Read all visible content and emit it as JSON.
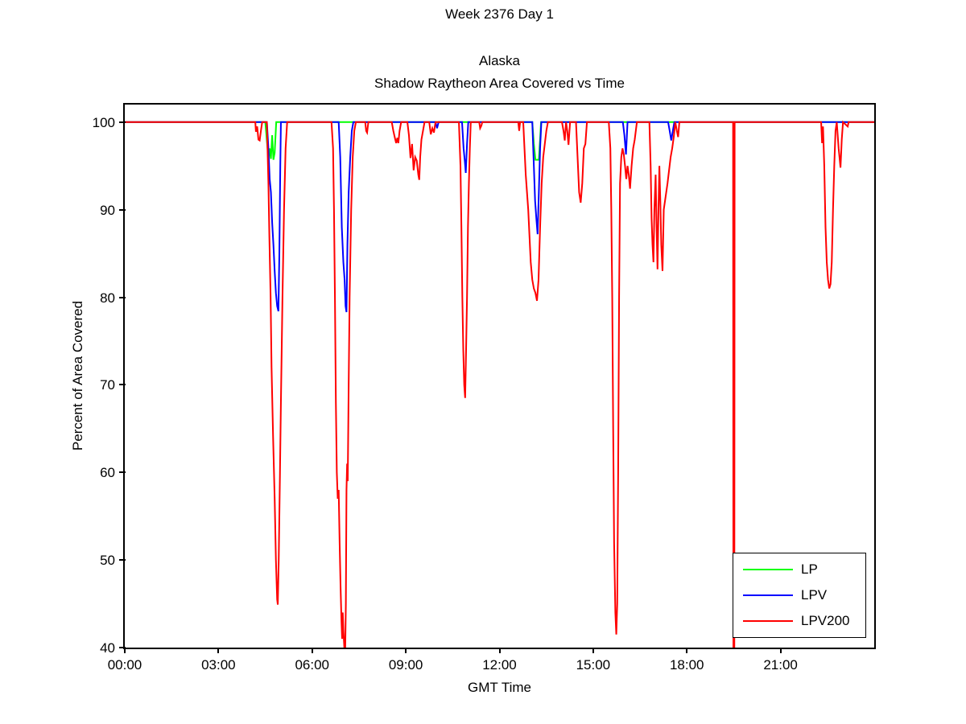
{
  "figure": {
    "suptitle": "Week 2376 Day 1",
    "title_line1": "Alaska",
    "title_line2": "Shadow Raytheon Area Covered vs Time",
    "xlabel": "GMT Time",
    "ylabel": "Percent of Area Covered"
  },
  "chart_data": {
    "type": "line",
    "title": "Alaska - Shadow Raytheon Area Covered vs Time",
    "suptitle": "Week 2376 Day 1",
    "xlabel": "GMT Time",
    "ylabel": "Percent of Area Covered",
    "xlim": [
      0,
      24
    ],
    "ylim": [
      40,
      102
    ],
    "grid": false,
    "x_ticks": [
      {
        "value": 0,
        "label": "00:00"
      },
      {
        "value": 3,
        "label": "03:00"
      },
      {
        "value": 6,
        "label": "06:00"
      },
      {
        "value": 9,
        "label": "09:00"
      },
      {
        "value": 12,
        "label": "12:00"
      },
      {
        "value": 15,
        "label": "15:00"
      },
      {
        "value": 18,
        "label": "18:00"
      },
      {
        "value": 21,
        "label": "21:00"
      }
    ],
    "y_ticks": [
      {
        "value": 40,
        "label": "40"
      },
      {
        "value": 50,
        "label": "50"
      },
      {
        "value": 60,
        "label": "60"
      },
      {
        "value": 70,
        "label": "70"
      },
      {
        "value": 80,
        "label": "80"
      },
      {
        "value": 90,
        "label": "90"
      },
      {
        "value": 100,
        "label": "100"
      }
    ],
    "legend": {
      "position": "bottom-right",
      "entries": [
        {
          "label": "LP",
          "color": "#00ff00"
        },
        {
          "label": "LPV",
          "color": "#0000ff"
        },
        {
          "label": "LPV200",
          "color": "#ff0000"
        }
      ]
    },
    "series": [
      {
        "name": "LP",
        "color": "#00ff00",
        "units": "hour_of_day, percent_covered",
        "points": [
          [
            0,
            100
          ],
          [
            4.5,
            100
          ],
          [
            4.56,
            97.5
          ],
          [
            4.6,
            95.8
          ],
          [
            4.64,
            97
          ],
          [
            4.68,
            95.8
          ],
          [
            4.72,
            98.5
          ],
          [
            4.76,
            95.7
          ],
          [
            4.8,
            96.5
          ],
          [
            4.85,
            100
          ],
          [
            13.05,
            100
          ],
          [
            13.1,
            97.5
          ],
          [
            13.15,
            95.7
          ],
          [
            13.26,
            95.7
          ],
          [
            13.3,
            98
          ],
          [
            13.33,
            100
          ],
          [
            24,
            100
          ]
        ]
      },
      {
        "name": "LPV",
        "color": "#0000ff",
        "units": "hour_of_day, percent_covered",
        "points": [
          [
            0,
            100
          ],
          [
            4.55,
            100
          ],
          [
            4.6,
            97
          ],
          [
            4.64,
            93.5
          ],
          [
            4.68,
            92
          ],
          [
            4.72,
            88.5
          ],
          [
            4.76,
            86
          ],
          [
            4.8,
            83
          ],
          [
            4.84,
            80.5
          ],
          [
            4.88,
            79
          ],
          [
            4.92,
            78.4
          ],
          [
            4.95,
            85
          ],
          [
            4.98,
            95
          ],
          [
            5.0,
            100
          ],
          [
            6.85,
            100
          ],
          [
            6.9,
            96
          ],
          [
            6.95,
            88
          ],
          [
            7.0,
            84
          ],
          [
            7.04,
            82
          ],
          [
            7.07,
            79
          ],
          [
            7.1,
            78.3
          ],
          [
            7.13,
            86
          ],
          [
            7.17,
            92
          ],
          [
            7.22,
            96
          ],
          [
            7.27,
            99
          ],
          [
            7.32,
            100
          ],
          [
            9.95,
            100
          ],
          [
            10.0,
            99.3
          ],
          [
            10.05,
            100
          ],
          [
            10.8,
            100
          ],
          [
            10.85,
            97
          ],
          [
            10.89,
            95.5
          ],
          [
            10.92,
            94.2
          ],
          [
            10.96,
            97.5
          ],
          [
            11.0,
            100
          ],
          [
            13.05,
            100
          ],
          [
            13.1,
            95
          ],
          [
            13.14,
            91
          ],
          [
            13.18,
            89
          ],
          [
            13.22,
            87.2
          ],
          [
            13.26,
            92
          ],
          [
            13.3,
            97
          ],
          [
            13.34,
            100
          ],
          [
            15.95,
            100
          ],
          [
            16.0,
            98.5
          ],
          [
            16.05,
            96.3
          ],
          [
            16.1,
            100
          ],
          [
            17.4,
            100
          ],
          [
            17.45,
            99
          ],
          [
            17.5,
            97.9
          ],
          [
            17.56,
            99.2
          ],
          [
            17.6,
            100
          ],
          [
            24,
            100
          ]
        ]
      },
      {
        "name": "LPV200",
        "color": "#ff0000",
        "units": "hour_of_day, percent_covered",
        "points": [
          [
            0,
            100
          ],
          [
            4.18,
            100
          ],
          [
            4.2,
            98.9
          ],
          [
            4.24,
            99.5
          ],
          [
            4.28,
            98
          ],
          [
            4.32,
            97.9
          ],
          [
            4.36,
            99
          ],
          [
            4.4,
            100
          ],
          [
            4.55,
            100
          ],
          [
            4.6,
            93
          ],
          [
            4.63,
            87
          ],
          [
            4.67,
            80
          ],
          [
            4.7,
            72
          ],
          [
            4.75,
            64
          ],
          [
            4.8,
            57
          ],
          [
            4.84,
            50
          ],
          [
            4.88,
            45.5
          ],
          [
            4.9,
            44.9
          ],
          [
            4.93,
            50
          ],
          [
            4.97,
            60
          ],
          [
            5.0,
            68
          ],
          [
            5.05,
            80
          ],
          [
            5.1,
            90
          ],
          [
            5.15,
            97
          ],
          [
            5.2,
            100
          ],
          [
            6.62,
            100
          ],
          [
            6.67,
            97
          ],
          [
            6.7,
            90
          ],
          [
            6.73,
            80
          ],
          [
            6.76,
            68
          ],
          [
            6.79,
            60
          ],
          [
            6.82,
            57
          ],
          [
            6.85,
            58
          ],
          [
            6.88,
            52
          ],
          [
            6.91,
            47
          ],
          [
            6.94,
            43
          ],
          [
            6.96,
            41
          ],
          [
            6.98,
            44
          ],
          [
            7.0,
            42
          ],
          [
            7.03,
            40
          ],
          [
            7.06,
            40
          ],
          [
            7.08,
            45
          ],
          [
            7.1,
            58
          ],
          [
            7.12,
            61
          ],
          [
            7.14,
            59
          ],
          [
            7.17,
            70
          ],
          [
            7.2,
            80
          ],
          [
            7.25,
            90
          ],
          [
            7.3,
            96
          ],
          [
            7.35,
            99
          ],
          [
            7.4,
            100
          ],
          [
            7.7,
            100
          ],
          [
            7.73,
            99
          ],
          [
            7.76,
            98.8
          ],
          [
            7.8,
            100
          ],
          [
            8.55,
            100
          ],
          [
            8.6,
            99
          ],
          [
            8.65,
            98.2
          ],
          [
            8.69,
            97.6
          ],
          [
            8.73,
            98.2
          ],
          [
            8.76,
            97.6
          ],
          [
            8.8,
            99
          ],
          [
            8.85,
            100
          ],
          [
            9.05,
            100
          ],
          [
            9.1,
            98.5
          ],
          [
            9.15,
            95.9
          ],
          [
            9.2,
            97.5
          ],
          [
            9.25,
            94.5
          ],
          [
            9.3,
            96
          ],
          [
            9.35,
            95.6
          ],
          [
            9.4,
            94
          ],
          [
            9.43,
            93.4
          ],
          [
            9.46,
            96
          ],
          [
            9.5,
            98
          ],
          [
            9.55,
            99
          ],
          [
            9.6,
            100
          ],
          [
            9.75,
            100
          ],
          [
            9.8,
            98.6
          ],
          [
            9.85,
            99.3
          ],
          [
            9.9,
            98.8
          ],
          [
            9.95,
            100
          ],
          [
            10.7,
            100
          ],
          [
            10.75,
            95
          ],
          [
            10.78,
            88
          ],
          [
            10.81,
            80
          ],
          [
            10.84,
            74
          ],
          [
            10.87,
            70
          ],
          [
            10.9,
            68.5
          ],
          [
            10.93,
            74
          ],
          [
            10.96,
            80
          ],
          [
            10.99,
            88
          ],
          [
            11.02,
            93
          ],
          [
            11.05,
            97
          ],
          [
            11.08,
            100
          ],
          [
            11.35,
            100
          ],
          [
            11.38,
            99.3
          ],
          [
            11.42,
            99.6
          ],
          [
            11.45,
            100
          ],
          [
            12.6,
            100
          ],
          [
            12.63,
            99
          ],
          [
            12.66,
            100
          ],
          [
            12.76,
            100
          ],
          [
            12.8,
            97
          ],
          [
            12.84,
            94
          ],
          [
            12.88,
            92
          ],
          [
            12.92,
            90
          ],
          [
            12.96,
            87
          ],
          [
            13.0,
            84
          ],
          [
            13.05,
            82
          ],
          [
            13.1,
            81
          ],
          [
            13.15,
            80.5
          ],
          [
            13.2,
            79.6
          ],
          [
            13.25,
            82
          ],
          [
            13.3,
            88
          ],
          [
            13.35,
            93
          ],
          [
            13.4,
            96
          ],
          [
            13.45,
            97.5
          ],
          [
            13.5,
            99
          ],
          [
            13.55,
            100
          ],
          [
            14.0,
            100
          ],
          [
            14.05,
            99
          ],
          [
            14.09,
            97.9
          ],
          [
            14.13,
            100
          ],
          [
            14.17,
            99
          ],
          [
            14.21,
            97.4
          ],
          [
            14.26,
            100
          ],
          [
            14.45,
            100
          ],
          [
            14.5,
            96
          ],
          [
            14.55,
            92
          ],
          [
            14.6,
            90.8
          ],
          [
            14.65,
            93
          ],
          [
            14.7,
            97
          ],
          [
            14.75,
            97.5
          ],
          [
            14.8,
            100
          ],
          [
            15.5,
            100
          ],
          [
            15.55,
            97
          ],
          [
            15.58,
            90
          ],
          [
            15.61,
            80
          ],
          [
            15.64,
            65
          ],
          [
            15.67,
            52
          ],
          [
            15.71,
            44
          ],
          [
            15.74,
            41.5
          ],
          [
            15.77,
            45
          ],
          [
            15.8,
            60
          ],
          [
            15.83,
            80
          ],
          [
            15.86,
            93
          ],
          [
            15.9,
            96
          ],
          [
            15.94,
            97
          ],
          [
            15.98,
            96.3
          ],
          [
            16.02,
            95
          ],
          [
            16.06,
            93.5
          ],
          [
            16.1,
            95
          ],
          [
            16.14,
            94
          ],
          [
            16.18,
            92.4
          ],
          [
            16.23,
            95
          ],
          [
            16.28,
            97
          ],
          [
            16.33,
            98
          ],
          [
            16.4,
            100
          ],
          [
            16.8,
            100
          ],
          [
            16.84,
            95
          ],
          [
            16.87,
            89
          ],
          [
            16.9,
            86
          ],
          [
            16.93,
            84
          ],
          [
            16.96,
            90
          ],
          [
            17.0,
            94
          ],
          [
            17.03,
            88
          ],
          [
            17.06,
            83.2
          ],
          [
            17.09,
            90
          ],
          [
            17.12,
            95
          ],
          [
            17.15,
            91
          ],
          [
            17.18,
            86
          ],
          [
            17.22,
            83
          ],
          [
            17.26,
            90
          ],
          [
            17.3,
            91
          ],
          [
            17.34,
            92
          ],
          [
            17.38,
            93
          ],
          [
            17.43,
            94.5
          ],
          [
            17.48,
            96
          ],
          [
            17.53,
            97
          ],
          [
            17.58,
            98.3
          ],
          [
            17.63,
            100
          ],
          [
            17.68,
            99
          ],
          [
            17.72,
            98.3
          ],
          [
            17.76,
            100
          ],
          [
            19.48,
            100
          ],
          [
            19.49,
            40
          ],
          [
            19.52,
            40
          ],
          [
            19.53,
            100
          ],
          [
            22.3,
            100
          ],
          [
            22.33,
            97.6
          ],
          [
            22.36,
            99.5
          ],
          [
            22.4,
            95
          ],
          [
            22.44,
            88
          ],
          [
            22.48,
            84
          ],
          [
            22.52,
            82
          ],
          [
            22.56,
            81
          ],
          [
            22.6,
            81.5
          ],
          [
            22.64,
            84
          ],
          [
            22.68,
            90
          ],
          [
            22.72,
            95
          ],
          [
            22.76,
            99
          ],
          [
            22.8,
            100
          ],
          [
            22.86,
            97
          ],
          [
            22.92,
            94.8
          ],
          [
            22.96,
            98
          ],
          [
            23.0,
            100
          ],
          [
            23.15,
            99.5
          ],
          [
            23.18,
            100
          ],
          [
            24,
            100
          ]
        ]
      }
    ]
  }
}
